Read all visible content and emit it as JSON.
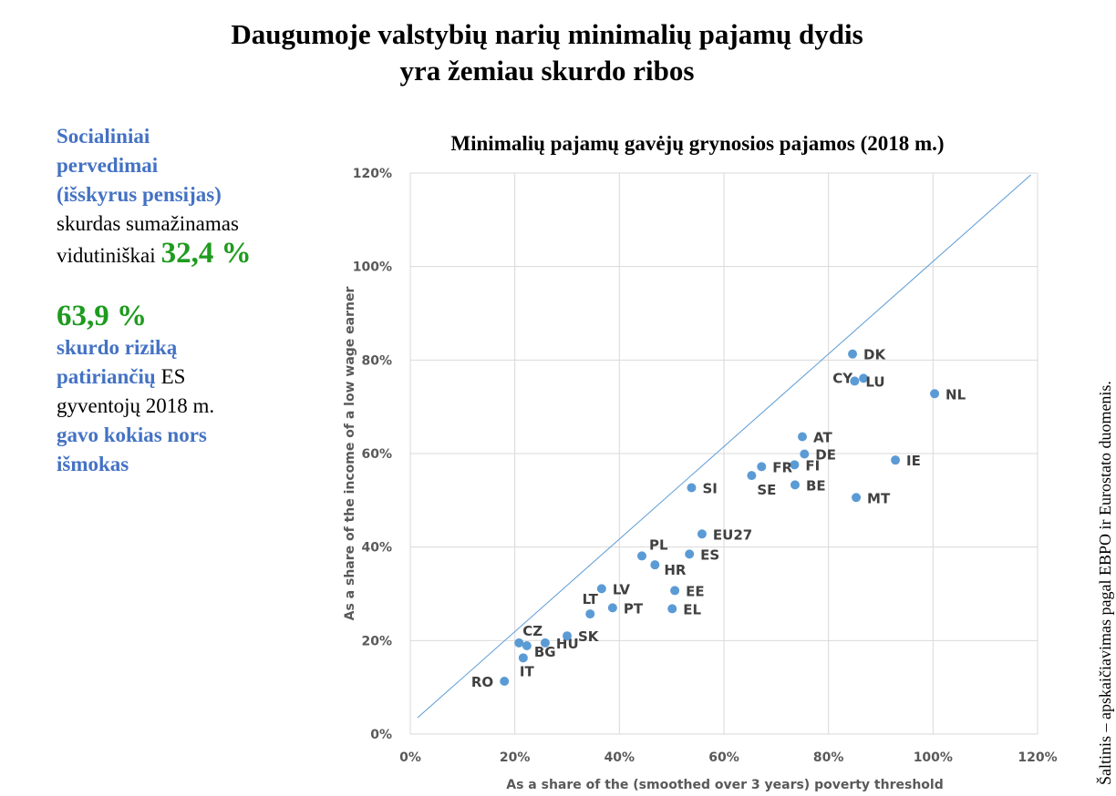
{
  "title": [
    "Daugumoje valstybių narių minimalių pajamų dydis",
    "yra žemiau skurdo ribos"
  ],
  "sidebar": [
    {
      "lines": [
        [
          {
            "text": "Socialiniai",
            "style": "accent"
          }
        ],
        [
          {
            "text": "pervedimai",
            "style": "accent"
          }
        ],
        [
          {
            "text": "(išskyrus pensijas)",
            "style": "accent"
          }
        ],
        [
          {
            "text": "skurdas sumažinamas",
            "style": "plain"
          }
        ],
        [
          {
            "text": "vidutiniškai",
            "style": "plain"
          },
          {
            "text": "32,4 %",
            "style": "highlight"
          }
        ]
      ]
    },
    {
      "lines": [
        [
          {
            "text": "63,9 %",
            "style": "highlight"
          }
        ],
        [
          {
            "text": "skurdo riziką",
            "style": "accent"
          }
        ],
        [
          {
            "text": "patiriančių",
            "style": "accent"
          },
          {
            "text": "ES",
            "style": "plain"
          }
        ],
        [
          {
            "text": "gyventojų 2018 m.",
            "style": "plain"
          }
        ],
        [
          {
            "text": "gavo kokias nors",
            "style": "accent"
          }
        ],
        [
          {
            "text": "išmokas",
            "style": "accent"
          }
        ]
      ]
    }
  ],
  "source": "Šaltinis – apskaičiavimas pagal EBPO ir Eurostato duomenis.",
  "chart_data": {
    "type": "scatter",
    "title": "Minimalių pajamų gavėjų grynosios pajamos (2018 m.)",
    "x_label": "As a share of the (smoothed over 3 years) poverty threshold",
    "y_label": "As a share of the income of a low wage earner",
    "categories": [
      "DK",
      "NL",
      "CY",
      "LU",
      "AT",
      "DE",
      "FI",
      "FR",
      "SE",
      "BE",
      "IE",
      "MT",
      "SI",
      "EU27",
      "PL",
      "ES",
      "HR",
      "LV",
      "EE",
      "LT",
      "PT",
      "EL",
      "CZ",
      "BG",
      "HU",
      "SK",
      "IT",
      "RO"
    ],
    "x": [
      84.6,
      100.3,
      86.7,
      85.0,
      75.0,
      75.4,
      73.5,
      67.2,
      65.3,
      73.6,
      92.8,
      85.3,
      53.8,
      55.8,
      44.3,
      53.4,
      46.8,
      36.6,
      50.6,
      34.4,
      38.7,
      50.1,
      20.8,
      22.3,
      25.8,
      30.0,
      21.6,
      18.0
    ],
    "values": [
      81.3,
      72.8,
      76.1,
      75.5,
      63.6,
      59.9,
      57.6,
      57.2,
      55.3,
      53.3,
      58.6,
      50.6,
      52.7,
      42.8,
      38.1,
      38.5,
      36.2,
      31.1,
      30.7,
      25.7,
      27.0,
      26.8,
      19.5,
      18.9,
      19.5,
      21.0,
      16.3,
      11.3
    ],
    "color": "#5b9bd5",
    "reference_line": {
      "x": [
        1.4,
        118.7
      ],
      "y": [
        3.5,
        119.6
      ],
      "color": "#5b9bd5"
    },
    "xlim": [
      0,
      120
    ],
    "ylim": [
      0,
      120
    ],
    "xticks": [
      {
        "value": 0,
        "label": "0%"
      },
      {
        "value": 20,
        "label": "20%"
      },
      {
        "value": 40,
        "label": "40%"
      },
      {
        "value": 60,
        "label": "60%"
      },
      {
        "value": 80,
        "label": "80%"
      },
      {
        "value": 100,
        "label": "100%"
      },
      {
        "value": 120,
        "label": "120%"
      }
    ],
    "yticks": [
      {
        "value": 0,
        "label": "0%"
      },
      {
        "value": 20,
        "label": "20%"
      },
      {
        "value": 40,
        "label": "40%"
      },
      {
        "value": 60,
        "label": "60%"
      },
      {
        "value": 80,
        "label": "80%"
      },
      {
        "value": 100,
        "label": "100%"
      },
      {
        "value": 120,
        "label": "120%"
      }
    ],
    "grid": true
  }
}
